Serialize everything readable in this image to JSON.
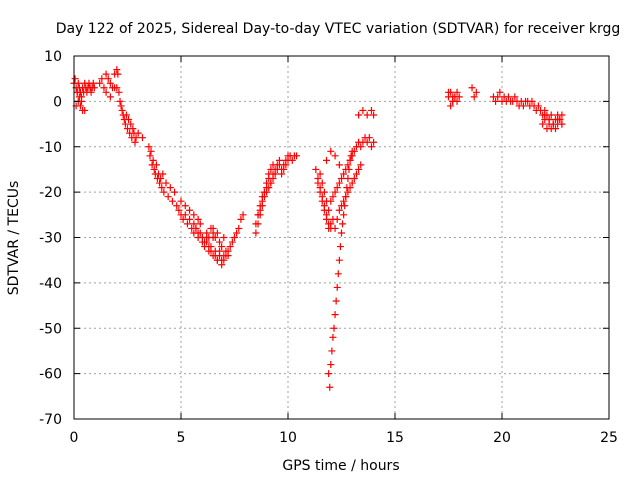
{
  "chart_data": {
    "type": "scatter",
    "title": "Day 122 of 2025, Sidereal Day-to-day VTEC variation (SDTVAR) for receiver krgg",
    "xlabel": "GPS time / hours",
    "ylabel": "SDTVAR / TECUs",
    "xlim": [
      0,
      25
    ],
    "ylim": [
      -70,
      10
    ],
    "xticks": [
      0,
      5,
      10,
      15,
      20,
      25
    ],
    "yticks": [
      -70,
      -60,
      -50,
      -40,
      -30,
      -20,
      -10,
      0,
      10
    ],
    "grid": true,
    "marker": "+",
    "color": "#ff0000",
    "series": [
      {
        "name": "SDTVAR",
        "x": [
          0.0,
          0.05,
          0.1,
          0.15,
          0.2,
          0.25,
          0.3,
          0.35,
          0.4,
          0.45,
          0.5,
          0.55,
          0.6,
          0.65,
          0.7,
          0.75,
          0.8,
          0.85,
          0.9,
          0.95,
          0.1,
          0.2,
          0.3,
          0.4,
          0.5,
          0.15,
          0.25,
          0.35,
          1.2,
          1.3,
          1.4,
          1.5,
          1.6,
          1.7,
          1.8,
          1.9,
          2.0,
          2.05,
          1.5,
          1.7,
          1.9,
          2.0,
          2.1,
          2.15,
          2.2,
          2.25,
          2.3,
          2.35,
          2.4,
          2.45,
          2.5,
          2.55,
          2.6,
          2.65,
          2.7,
          2.75,
          2.8,
          2.85,
          2.9,
          3.0,
          3.2,
          3.5,
          3.55,
          3.6,
          3.65,
          3.7,
          3.75,
          3.8,
          3.85,
          3.9,
          3.95,
          4.0,
          4.05,
          4.1,
          4.15,
          4.2,
          4.3,
          4.4,
          4.5,
          4.6,
          4.7,
          4.8,
          4.9,
          5.0,
          5.1,
          5.2,
          5.3,
          5.4,
          5.5,
          5.6,
          5.7,
          5.8,
          5.9,
          6.0,
          6.1,
          6.2,
          6.3,
          6.4,
          6.5,
          6.6,
          6.7,
          6.8,
          6.9,
          7.0,
          6.5,
          6.6,
          6.7,
          6.8,
          6.9,
          7.0,
          7.1,
          7.2,
          7.3,
          7.4,
          7.5,
          7.6,
          7.7,
          7.8,
          7.9,
          6.2,
          6.3,
          6.4,
          6.5,
          6.6,
          6.7,
          6.8,
          6.9,
          7.0,
          7.1,
          7.2,
          5.6,
          5.7,
          5.8,
          5.9,
          6.0,
          6.1,
          6.2,
          6.3,
          6.4,
          6.5,
          5.0,
          5.2,
          5.4,
          5.6,
          5.8,
          8.5,
          8.6,
          8.7,
          8.8,
          8.9,
          9.0,
          9.1,
          9.2,
          9.3,
          9.4,
          9.5,
          9.6,
          9.7,
          9.8,
          9.9,
          10.0,
          10.1,
          10.2,
          10.3,
          10.4,
          8.6,
          8.7,
          8.8,
          8.9,
          9.0,
          9.1,
          9.2,
          9.3,
          9.4,
          9.5,
          9.6,
          9.7,
          9.8,
          9.9,
          10.0,
          8.5,
          8.6,
          8.7,
          8.8,
          8.9,
          9.0,
          9.1,
          9.2,
          9.3,
          11.3,
          11.4,
          11.5,
          11.6,
          11.7,
          11.8,
          11.9,
          12.0,
          12.1,
          11.4,
          11.5,
          11.6,
          11.7,
          11.8,
          11.9,
          12.0,
          11.5,
          11.6,
          11.7,
          11.8,
          11.9,
          11.9,
          11.95,
          12.0,
          12.05,
          12.1,
          12.15,
          12.2,
          12.25,
          12.3,
          12.35,
          12.4,
          12.45,
          12.5,
          12.55,
          12.6,
          12.65,
          12.7,
          12.75,
          12.8,
          12.85,
          12.9,
          12.95,
          13.0,
          12.0,
          12.1,
          12.2,
          12.3,
          12.4,
          12.5,
          12.6,
          12.7,
          12.8,
          12.9,
          13.0,
          13.1,
          13.2,
          13.3,
          13.4,
          13.5,
          13.6,
          13.7,
          13.8,
          13.9,
          14.0,
          12.2,
          12.3,
          12.4,
          12.5,
          12.6,
          12.7,
          12.8,
          12.9,
          13.0,
          13.1,
          13.2,
          13.3,
          13.4,
          11.8,
          12.0,
          12.2,
          12.4,
          13.3,
          13.5,
          13.7,
          13.9,
          14.0,
          17.5,
          17.6,
          17.7,
          17.8,
          17.9,
          18.0,
          17.6,
          17.7,
          17.8,
          17.9,
          17.5,
          17.7,
          18.6,
          18.7,
          18.8,
          19.6,
          19.7,
          19.8,
          19.9,
          20.0,
          20.1,
          20.2,
          20.3,
          20.4,
          20.5,
          20.6,
          20.7,
          20.8,
          20.9,
          21.0,
          21.1,
          21.2,
          21.3,
          21.4,
          21.5,
          21.6,
          21.7,
          21.8,
          21.9,
          22.0,
          22.1,
          22.2,
          22.3,
          22.4,
          22.5,
          22.6,
          22.7,
          22.8,
          21.9,
          22.0,
          22.1,
          22.2,
          22.3,
          22.4,
          22.5,
          22.6,
          22.7,
          22.8,
          22.0,
          22.2,
          22.4,
          22.6,
          22.8
        ],
        "y": [
          4,
          5,
          3,
          2,
          4,
          3,
          2,
          1,
          3,
          2,
          4,
          3,
          2,
          3,
          4,
          3,
          2,
          3,
          4,
          3,
          -1,
          0,
          -1,
          -2,
          -2,
          2,
          1,
          0,
          4,
          5,
          3,
          6,
          5,
          4,
          3,
          6,
          7,
          6,
          2,
          1,
          3,
          3,
          2,
          0,
          -1,
          -2,
          -3,
          -4,
          -5,
          -3,
          -6,
          -4,
          -7,
          -5,
          -8,
          -6,
          -7,
          -9,
          -8,
          -7,
          -8,
          -10,
          -12,
          -11,
          -14,
          -13,
          -15,
          -16,
          -14,
          -17,
          -16,
          -18,
          -17,
          -19,
          -16,
          -20,
          -18,
          -21,
          -19,
          -22,
          -20,
          -23,
          -24,
          -25,
          -26,
          -25,
          -27,
          -26,
          -28,
          -29,
          -28,
          -30,
          -29,
          -31,
          -32,
          -30,
          -33,
          -32,
          -34,
          -33,
          -35,
          -34,
          -35,
          -34,
          -28,
          -30,
          -29,
          -31,
          -32,
          -30,
          -33,
          -34,
          -32,
          -31,
          -30,
          -29,
          -28,
          -26,
          -25,
          -31,
          -32,
          -33,
          -30,
          -34,
          -35,
          -33,
          -36,
          -35,
          -34,
          -33,
          -27,
          -28,
          -29,
          -27,
          -30,
          -31,
          -29,
          -30,
          -28,
          -29,
          -22,
          -23,
          -24,
          -25,
          -26,
          -29,
          -27,
          -25,
          -23,
          -21,
          -20,
          -19,
          -18,
          -17,
          -16,
          -15,
          -14,
          -16,
          -15,
          -14,
          -13,
          -12,
          -13,
          -12,
          -12,
          -25,
          -24,
          -22,
          -20,
          -19,
          -17,
          -18,
          -16,
          -15,
          -14,
          -13,
          -15,
          -14,
          -13,
          -12,
          -27,
          -25,
          -23,
          -21,
          -20,
          -18,
          -16,
          -15,
          -14,
          -15,
          -17,
          -19,
          -21,
          -23,
          -25,
          -27,
          -28,
          -26,
          -18,
          -20,
          -22,
          -24,
          -26,
          -28,
          -27,
          -16,
          -18,
          -20,
          -22,
          -24,
          -60,
          -63,
          -58,
          -55,
          -52,
          -50,
          -47,
          -44,
          -41,
          -38,
          -35,
          -32,
          -29,
          -27,
          -25,
          -23,
          -21,
          -19,
          -17,
          -15,
          -13,
          -12,
          -11,
          -22,
          -21,
          -20,
          -19,
          -18,
          -17,
          -16,
          -15,
          -14,
          -13,
          -12,
          -11,
          -10,
          -9,
          -10,
          -9,
          -8,
          -9,
          -8,
          -10,
          -9,
          -28,
          -26,
          -24,
          -23,
          -22,
          -21,
          -20,
          -19,
          -18,
          -17,
          -16,
          -15,
          -14,
          -13,
          -11,
          -12,
          -14,
          -3,
          -2,
          -3,
          -2,
          -3,
          1,
          2,
          0,
          1,
          2,
          1,
          -1,
          0,
          1,
          0,
          2,
          1,
          3,
          1,
          2,
          1,
          0,
          1,
          2,
          0,
          1,
          0,
          1,
          0,
          0,
          1,
          0,
          -1,
          0,
          -1,
          0,
          0,
          -1,
          0,
          -1,
          -2,
          -1,
          -2,
          -3,
          -2,
          -3,
          -4,
          -3,
          -5,
          -4,
          -3,
          -4,
          -3,
          -5,
          -4,
          -6,
          -5,
          -6,
          -5,
          -6,
          -5,
          -4,
          -5,
          -3,
          -4,
          -5,
          -4,
          -5
        ]
      }
    ]
  }
}
